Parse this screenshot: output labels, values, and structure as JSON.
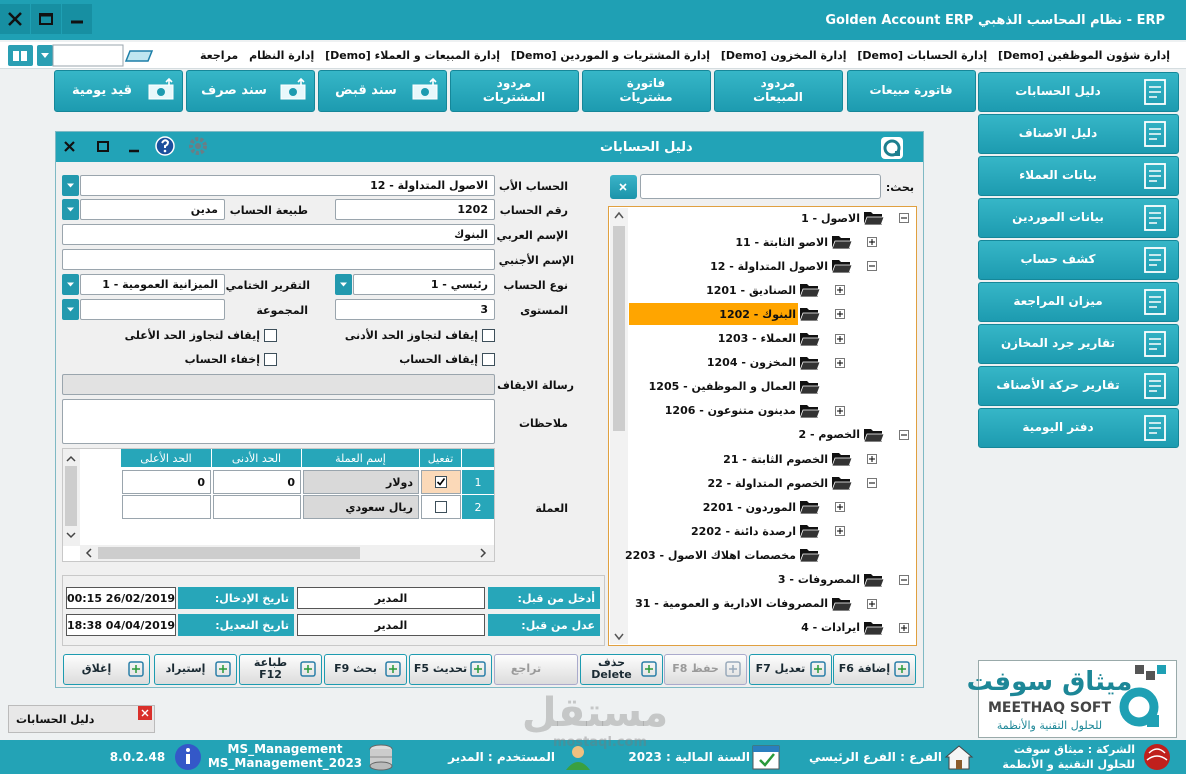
{
  "app_bar": {
    "title": "Golden Account ERP  نظام المحاسب الذهبي - ERP"
  },
  "menu": [
    "إدارة شؤون الموظفين [Demo]",
    "إدارة الحسابات [Demo]",
    "إدارة المخزون [Demo]",
    "إدارة المشتريات و الموردين [Demo]",
    "إدارة المبيعات و العملاء [Demo]",
    "إدارة النظام",
    "مراجعة"
  ],
  "toolbar": [
    "فاتورة مبيعات",
    "مردود المبيعات",
    "فاتورة مشتريات",
    "مردود المشتريات",
    "سند قبض",
    "سند صرف",
    "قيد يومية"
  ],
  "side_menu": [
    "دليل الحسابات",
    "دليل الاصناف",
    "بيانات العملاء",
    "بيانات الموردين",
    "كشف حساب",
    "ميزان المراجعة",
    "تقارير جرد المخازن",
    "تقارير حركة الأصناف",
    "دفتر اليومية"
  ],
  "window": {
    "title": "دليل الحسابات",
    "search_label": "بحث:",
    "form": {
      "parent_account": {
        "label": "الحساب الأب",
        "value": "12 - الاصول المتداولة"
      },
      "account_number": {
        "label": "رقم الحساب",
        "value": "1202"
      },
      "account_nature": {
        "label": "طبيعة الحساب",
        "value": "مدين"
      },
      "arabic_name": {
        "label": "الإسم العربي",
        "value": "البنوك"
      },
      "foreign_name": {
        "label": "الإسم الأجنبي"
      },
      "account_type": {
        "label": "نوع الحساب",
        "value": "1 - رئيسي"
      },
      "final_report": {
        "label": "التقرير الختامي",
        "value": "1 - الميزانية العمومية"
      },
      "level": {
        "label": "المستوى",
        "value": "3"
      },
      "group": {
        "label": "المجموعة"
      },
      "stop_message": {
        "label": "رسالة الايقاف"
      },
      "notes": {
        "label": "ملاحظات"
      },
      "currency": {
        "label": "العملة"
      }
    },
    "checkboxes": [
      {
        "label": "إيقاف لتجاوز الحد الأدنى",
        "checked": false
      },
      {
        "label": "إيقاف لتجاوز الحد الأعلى",
        "checked": false
      },
      {
        "label": "إيقاف الحساب",
        "checked": false
      },
      {
        "label": "إخفاء الحساب",
        "checked": false
      }
    ],
    "currency_table": {
      "columns": [
        "تفعيل",
        "إسم العملة",
        "الحد الأدنى",
        "الحد الأعلى"
      ],
      "rows": [
        {
          "number": 1,
          "active": true,
          "name": "دولار",
          "min": 0,
          "max": 0
        },
        {
          "number": 2,
          "active": false,
          "name": "ريال سعودي"
        }
      ]
    },
    "audit": {
      "created_by_label": "أدخل من قبل:",
      "created_by": "المدير",
      "created_at_label": "تاريخ الإدخال:",
      "created_at": "00:15 26/02/2019",
      "modified_by_label": "عدل من قبل:",
      "modified_by": "المدير",
      "modified_at_label": "تاريخ التعديل:",
      "modified_at": "18:38 04/04/2019"
    },
    "buttons": [
      {
        "label": "إضافة F6",
        "enabled": true
      },
      {
        "label": "تعديل F7",
        "enabled": true
      },
      {
        "label": "حفظ F8",
        "enabled": false
      },
      {
        "label": "حذف Delete",
        "enabled": true
      },
      {
        "label": "تراجع",
        "enabled": false
      },
      {
        "label": "تحديث F5",
        "enabled": true
      },
      {
        "label": "بحث F9",
        "enabled": true
      },
      {
        "label": "طباعة F12",
        "enabled": true
      },
      {
        "label": "إستيراد",
        "enabled": true
      },
      {
        "label": "إغلاق",
        "enabled": true
      }
    ],
    "tree": [
      {
        "label": "1 - الاصول",
        "level": 0,
        "expanded": true
      },
      {
        "label": "11 - الاصو الثابتة",
        "level": 1,
        "expanded": false
      },
      {
        "label": "12 - الاصول المتداولة",
        "level": 1,
        "expanded": true
      },
      {
        "label": "1201 - الصناديق",
        "level": 2,
        "expanded": false
      },
      {
        "label": "1202 - البنوك",
        "level": 2,
        "expanded": false,
        "selected": true
      },
      {
        "label": "1203 - العملاء",
        "level": 2,
        "expanded": false
      },
      {
        "label": "1204 - المخزون",
        "level": 2,
        "expanded": false
      },
      {
        "label": "1205 - العمال و الموظفين",
        "level": 2
      },
      {
        "label": "1206 - مدينون متنوعون",
        "level": 2,
        "expanded": false
      },
      {
        "label": "2 - الخصوم",
        "level": 0,
        "expanded": true
      },
      {
        "label": "21 - الخصوم الثابتة",
        "level": 1,
        "expanded": false
      },
      {
        "label": "22 - الخصوم المتداولة",
        "level": 1,
        "expanded": true
      },
      {
        "label": "2201 - الموردون",
        "level": 2,
        "expanded": false
      },
      {
        "label": "2202 - ارصدة دائنة",
        "level": 2,
        "expanded": false
      },
      {
        "label": "2203 - مخصصات اهلاك الاصول",
        "level": 2
      },
      {
        "label": "3 - المصروفات",
        "level": 0,
        "expanded": true
      },
      {
        "label": "31 - المصروفات الادارية و العمومية",
        "level": 1,
        "expanded": false
      },
      {
        "label": "4 - ايرادات",
        "level": 0,
        "expanded": false
      }
    ]
  },
  "taskbar": {
    "item": "دليل الحسابات"
  },
  "logo": {
    "arabic": "ميثاق سوفت",
    "english": "MEETHAQ SOFT",
    "tagline": "للحلول التقنية والأنظمة"
  },
  "watermark": {
    "text": "مستقل",
    "url": "mostaql.com"
  },
  "status_bar": {
    "company": "الشركة : ميثاق سوفت",
    "company_tagline": "للحلول التقنية و الأنظمة",
    "branch": "الفرع : الفرع الرئيسي",
    "fiscal_year": "السنة المالية : 2023",
    "user": "المستخدم : المدير",
    "database": "MS_Management",
    "database_year": "MS_Management_2023",
    "version": "8.0.2.48"
  }
}
